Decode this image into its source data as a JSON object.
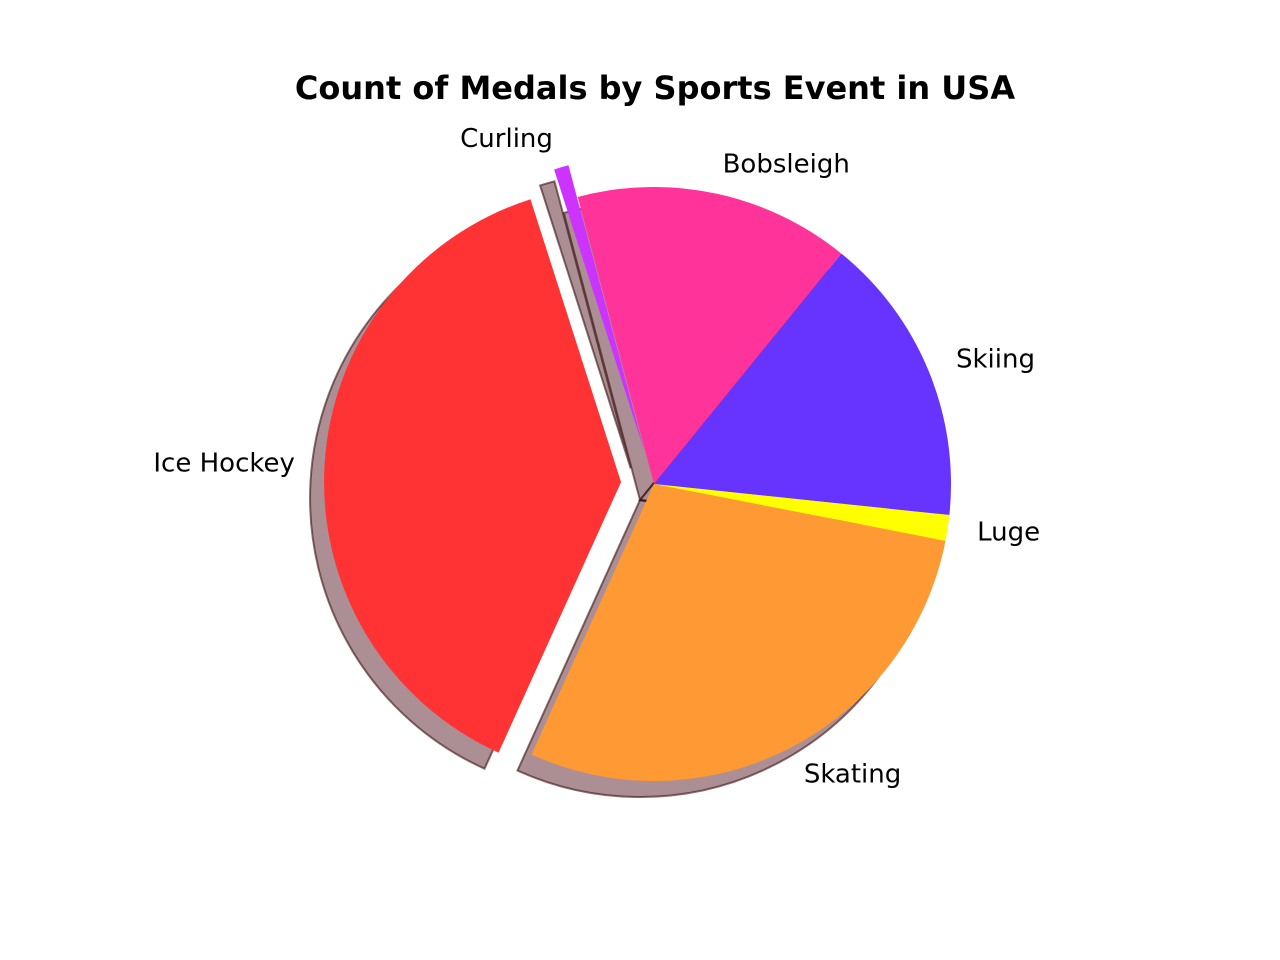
{
  "chart_data": {
    "type": "pie",
    "title": "Count of Medals by Sports Event in USA",
    "slices": [
      {
        "label": "Skiing",
        "value": 15.8,
        "color": "#6633ff"
      },
      {
        "label": "Bobsleigh",
        "value": 15.0,
        "color": "#ff3399"
      },
      {
        "label": "Curling",
        "value": 0.8,
        "color": "#cc33ff"
      },
      {
        "label": "Ice Hockey",
        "value": 38.3,
        "color": "#ff3333"
      },
      {
        "label": "Skating",
        "value": 28.7,
        "color": "#ff9933"
      },
      {
        "label": "Luge",
        "value": 1.4,
        "color": "#ffff00"
      }
    ],
    "exploded": [
      "Ice Hockey",
      "Curling"
    ],
    "shadow": true,
    "legend": "none"
  }
}
